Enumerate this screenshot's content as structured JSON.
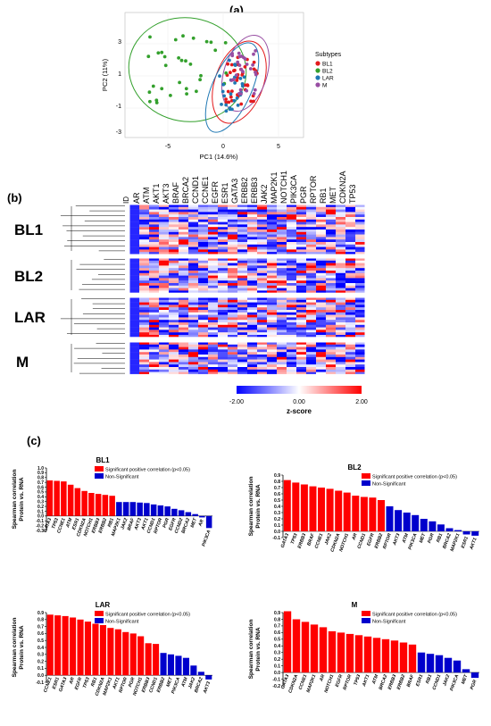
{
  "panels": {
    "a": "(a)",
    "b": "(b)",
    "c": "(c)"
  },
  "pca": {
    "xlabel": "PC1 (14.6%)",
    "ylabel": "PC2 (11%)",
    "xticks": [
      "-5",
      "0",
      "5"
    ],
    "yticks": [
      "3",
      "1",
      "-1",
      "-3"
    ],
    "legend_title": "Subtypes",
    "legend": [
      {
        "name": "BL1",
        "color": "#e31a1c"
      },
      {
        "name": "BL2",
        "color": "#33a02c"
      },
      {
        "name": "LAR",
        "color": "#1f78b4"
      },
      {
        "name": "M",
        "color": "#984ea3"
      }
    ]
  },
  "heatmap": {
    "id_label": "ID",
    "genes": [
      "AR",
      "ATM",
      "AKT1",
      "AKT3",
      "BRAF",
      "BRCA2",
      "CCND1",
      "CCNE1",
      "EGFR",
      "ESR1",
      "GATA3",
      "ERBB2",
      "ERBB3",
      "JAK2",
      "MAP2K1",
      "NOTCH1",
      "PIK3CA",
      "PGR",
      "RPTOR",
      "RB1",
      "MET",
      "CDKN2A",
      "TP53"
    ],
    "subtypes": [
      "BL1",
      "BL2",
      "LAR",
      "M"
    ],
    "scale_min": "-2.00",
    "scale_mid": "0.00",
    "scale_max": "2.00",
    "scale_label": "z-score"
  },
  "legend_labels": {
    "sig": "Significant positive correlation (p<0.05)",
    "nonsig": "Non-Significant"
  },
  "colors": {
    "sig": "#ff0000",
    "nonsig": "#0000cc"
  },
  "chart_data": [
    {
      "type": "bar",
      "title": "BL1",
      "ylabel": "Spearman correlation Protein vs. RNA",
      "ylim": [
        -0.3,
        1.0
      ],
      "yticks": [
        "1.0",
        "0.9",
        "0.8",
        "0.7",
        "0.6",
        "0.5",
        "0.4",
        "0.3",
        "0.2",
        "0.1",
        "0.0",
        "-0.1",
        "-0.2",
        "-0.3"
      ],
      "categories": [
        "GATA3",
        "TP53",
        "CCNE1",
        "ATM",
        "ESR1",
        "CDKN2A",
        "NOTCH1",
        "ERBB3",
        "ERBB2",
        "RB1",
        "MAP2K1",
        "JAK2",
        "BRAF",
        "AKT3",
        "AKT1",
        "CCND1",
        "RPTOR",
        "PGR",
        "EGFR",
        "CCND2",
        "BRCA2",
        "MET",
        "AR",
        "PIK3CA"
      ],
      "values": [
        0.74,
        0.73,
        0.72,
        0.65,
        0.58,
        0.52,
        0.48,
        0.46,
        0.44,
        0.42,
        0.29,
        0.29,
        0.29,
        0.28,
        0.27,
        0.24,
        0.22,
        0.2,
        0.15,
        0.12,
        0.08,
        0.04,
        -0.03,
        -0.25
      ],
      "significant": [
        true,
        true,
        true,
        true,
        true,
        true,
        true,
        true,
        true,
        true,
        false,
        false,
        false,
        false,
        false,
        false,
        false,
        false,
        false,
        false,
        false,
        false,
        false,
        false
      ]
    },
    {
      "type": "bar",
      "title": "BL2",
      "ylabel": "Spearman correlation Protein vs. RNA",
      "ylim": [
        -0.1,
        0.9
      ],
      "yticks": [
        "0.9",
        "0.8",
        "0.7",
        "0.6",
        "0.5",
        "0.4",
        "0.3",
        "0.2",
        "0.1",
        "0.0",
        "-0.1"
      ],
      "categories": [
        "GATA3",
        "TP53",
        "ERBB3",
        "BRAF",
        "CCNE1",
        "JAK2",
        "CDKN2A",
        "NOTCH1",
        "AR",
        "CCND1",
        "EGFR",
        "ERBB2",
        "RPTOR",
        "AKT3",
        "ATM",
        "PIK3CA",
        "MET",
        "PGR",
        "RB1",
        "BRCA2",
        "MAP2K1",
        "ESR1",
        "AKT1"
      ],
      "values": [
        0.82,
        0.78,
        0.75,
        0.72,
        0.7,
        0.68,
        0.65,
        0.62,
        0.57,
        0.55,
        0.54,
        0.5,
        0.4,
        0.34,
        0.3,
        0.26,
        0.2,
        0.16,
        0.11,
        0.05,
        0.02,
        -0.05,
        -0.07
      ],
      "significant": [
        true,
        true,
        true,
        true,
        true,
        true,
        true,
        true,
        true,
        true,
        true,
        true,
        false,
        false,
        false,
        false,
        false,
        false,
        false,
        false,
        false,
        false,
        false
      ]
    },
    {
      "type": "bar",
      "title": "LAR",
      "ylabel": "Spearman correlation Protein vs. RNA",
      "ylim": [
        -0.1,
        0.9
      ],
      "yticks": [
        "0.9",
        "0.8",
        "0.7",
        "0.6",
        "0.5",
        "0.4",
        "0.3",
        "0.2",
        "0.1",
        "0.0",
        "-0.1"
      ],
      "categories": [
        "CCNE1",
        "ESR1",
        "GATA3",
        "AR",
        "EGFR",
        "TP53",
        "RB1",
        "CDKN2A",
        "MAP2K1",
        "AKT1",
        "RPTOR",
        "PGR",
        "NOTCH1",
        "ERBB3",
        "CCND1",
        "ERBB2",
        "MET",
        "PIK3CA",
        "ATM",
        "JAK2",
        "BRCA2",
        "AKT3"
      ],
      "values": [
        0.87,
        0.86,
        0.85,
        0.83,
        0.8,
        0.77,
        0.74,
        0.72,
        0.68,
        0.66,
        0.62,
        0.6,
        0.56,
        0.46,
        0.45,
        0.32,
        0.3,
        0.28,
        0.25,
        0.14,
        0.05,
        -0.06
      ],
      "significant": [
        true,
        true,
        true,
        true,
        true,
        true,
        true,
        true,
        true,
        true,
        true,
        true,
        true,
        true,
        true,
        false,
        false,
        false,
        false,
        false,
        false,
        false
      ]
    },
    {
      "type": "bar",
      "title": "M",
      "ylabel": "Spearman correlation Protein vs. RNA",
      "ylim": [
        -0.2,
        0.9
      ],
      "yticks": [
        "0.9",
        "0.8",
        "0.7",
        "0.6",
        "0.5",
        "0.4",
        "0.3",
        "0.2",
        "0.1",
        "0.0",
        "-0.1",
        "-0.2"
      ],
      "categories": [
        "GATA3",
        "CDKN2A",
        "CCNE1",
        "MAP2K1",
        "AR",
        "NOTCH1",
        "EGFR",
        "RPTOR",
        "TP53",
        "AKT1",
        "ATM",
        "BRCA2",
        "ERBB3",
        "ERBB2",
        "BRAF",
        "ESR1",
        "RB1",
        "CCND1",
        "JAK2",
        "PIK3CA",
        "MET",
        "PGR"
      ],
      "values": [
        0.92,
        0.8,
        0.76,
        0.72,
        0.68,
        0.62,
        0.6,
        0.58,
        0.56,
        0.54,
        0.52,
        0.5,
        0.48,
        0.45,
        0.42,
        0.3,
        0.28,
        0.26,
        0.22,
        0.18,
        0.05,
        -0.08
      ],
      "significant": [
        true,
        true,
        true,
        true,
        true,
        true,
        true,
        true,
        true,
        true,
        true,
        true,
        true,
        true,
        true,
        false,
        false,
        false,
        false,
        false,
        false,
        false
      ]
    }
  ]
}
